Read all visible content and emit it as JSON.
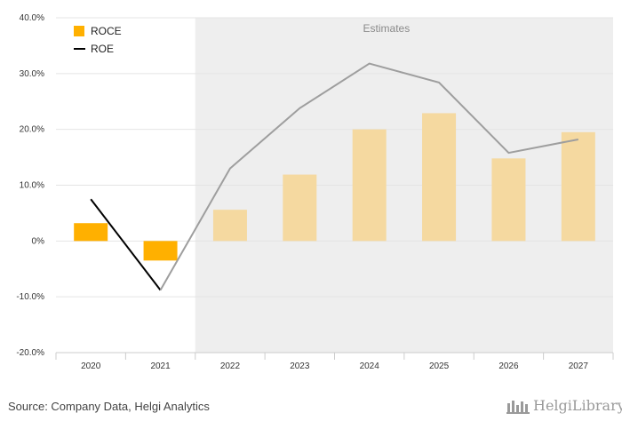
{
  "chart_data": {
    "type": "bar+line",
    "categories": [
      "2020",
      "2021",
      "2022",
      "2023",
      "2024",
      "2025",
      "2026",
      "2027"
    ],
    "series": [
      {
        "name": "ROCE",
        "type": "bar",
        "values": [
          3.2,
          -3.5,
          5.6,
          11.9,
          20.0,
          22.9,
          14.8,
          19.5
        ]
      },
      {
        "name": "ROE",
        "type": "line",
        "values": [
          7.5,
          -8.8,
          13.0,
          23.8,
          31.8,
          28.4,
          15.8,
          18.2
        ]
      }
    ],
    "estimates_from": "2022",
    "estimates_label": "Estimates",
    "ylim": [
      -20,
      40
    ],
    "yticks": [
      -20,
      -10,
      0,
      10,
      20,
      30,
      40
    ],
    "ytick_labels": [
      "-20.0%",
      "-10.0%",
      "0%",
      "10.0%",
      "20.0%",
      "30.0%",
      "40.0%"
    ],
    "legend": {
      "position": "top-left",
      "entries": [
        "ROCE",
        "ROE"
      ]
    },
    "grid": true,
    "colors": {
      "bar_actual": "#FFB000",
      "bar_estimate": "#F5D9A0",
      "line_actual": "#000000",
      "line_estimate": "#9E9E9E",
      "estimate_shade": "#EEEEEE",
      "grid": "#E4E4E4"
    }
  },
  "footer": {
    "source": "Source: Company Data, Helgi Analytics",
    "brand": "HelgiLibrary"
  }
}
